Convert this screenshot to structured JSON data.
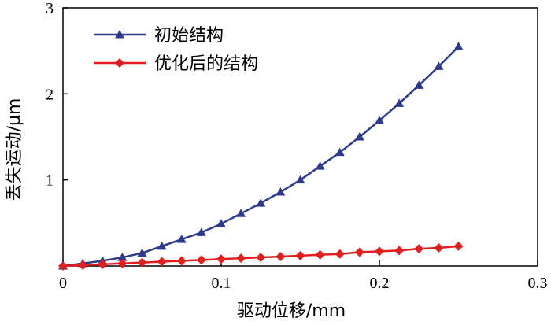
{
  "chart_data": {
    "type": "line",
    "xlabel": "驱动位移/mm",
    "ylabel": "丢失运动/μm",
    "xlim": [
      0,
      0.3
    ],
    "ylim": [
      0,
      3
    ],
    "x_ticks": [
      "0",
      "0.1",
      "0.2",
      "0.3"
    ],
    "y_ticks": [
      "1",
      "2",
      "3"
    ],
    "grid": false,
    "legend_placement": "top-left",
    "series": [
      {
        "name": "初始结构",
        "color": "#2e3a8c",
        "marker": "triangle",
        "x": [
          0,
          0.0125,
          0.025,
          0.0375,
          0.05,
          0.0625,
          0.075,
          0.0875,
          0.1,
          0.1125,
          0.125,
          0.1375,
          0.15,
          0.1625,
          0.175,
          0.1875,
          0.2,
          0.2125,
          0.225,
          0.2375,
          0.25
        ],
        "values": [
          0.0,
          0.03,
          0.06,
          0.1,
          0.15,
          0.23,
          0.31,
          0.39,
          0.49,
          0.61,
          0.73,
          0.86,
          1.0,
          1.16,
          1.32,
          1.5,
          1.69,
          1.89,
          2.1,
          2.32,
          2.55
        ]
      },
      {
        "name": "优化后的结构",
        "color": "#e02020",
        "marker": "diamond",
        "x": [
          0,
          0.0125,
          0.025,
          0.0375,
          0.05,
          0.0625,
          0.075,
          0.0875,
          0.1,
          0.1125,
          0.125,
          0.1375,
          0.15,
          0.1625,
          0.175,
          0.1875,
          0.2,
          0.2125,
          0.225,
          0.2375,
          0.25
        ],
        "values": [
          0.0,
          0.01,
          0.02,
          0.03,
          0.04,
          0.05,
          0.06,
          0.07,
          0.08,
          0.09,
          0.1,
          0.11,
          0.12,
          0.13,
          0.14,
          0.16,
          0.17,
          0.18,
          0.2,
          0.21,
          0.23
        ]
      }
    ]
  }
}
